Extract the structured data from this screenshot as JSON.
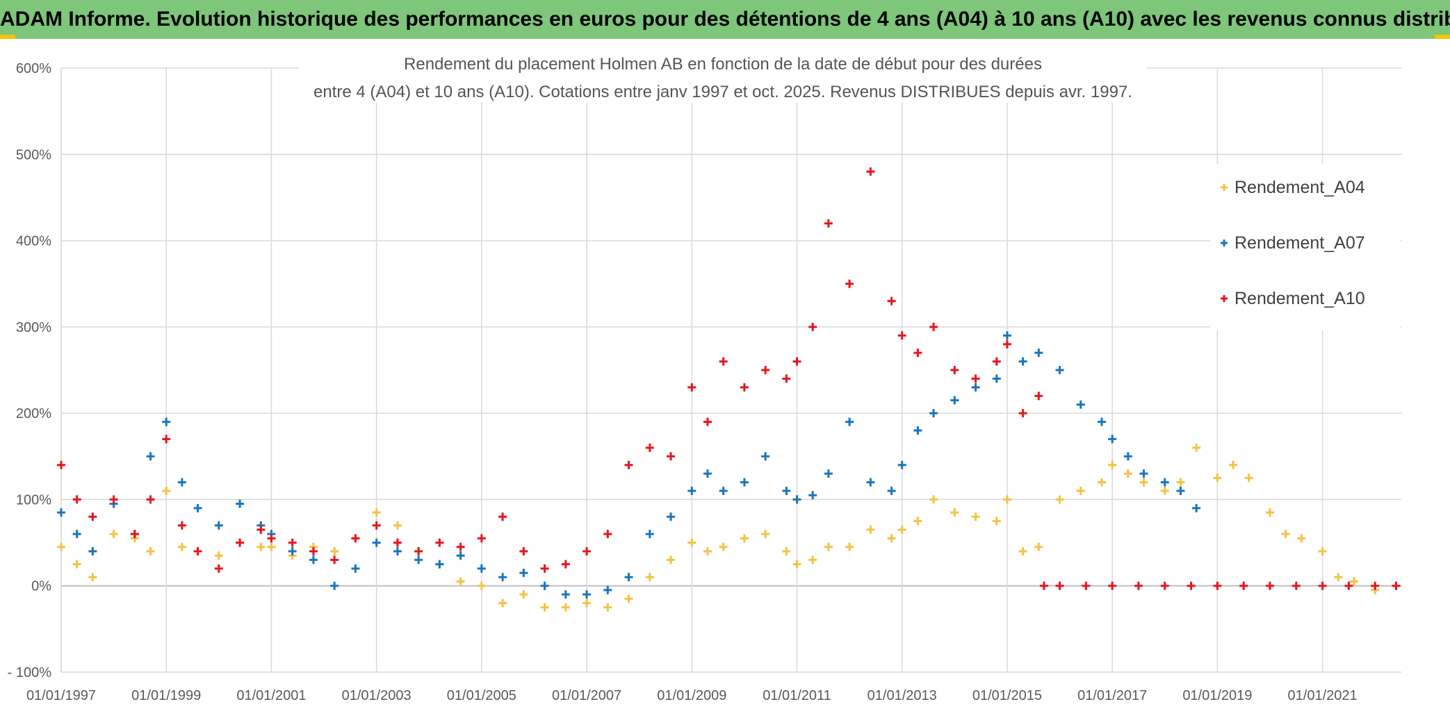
{
  "banner": {
    "text": "ADAM Informe. Evolution historique des performances en euros pour des détentions de 4 ans (A04) à 10 ans (A10) avec les revenus connus distribués"
  },
  "colors": {
    "banner_bg": "#7dc67a",
    "A04": "#f5c242",
    "A07": "#1a75bb",
    "A10": "#e8141c",
    "grid": "#d9d9d9"
  },
  "chart_data": {
    "type": "scatter",
    "title": "Rendement du placement Holmen AB en fonction de la date de début pour des durées",
    "subtitle": "entre 4 (A04) et 10 ans (A10). Cotations entre janv 1997 et oct. 2025. Revenus DISTRIBUES depuis avr. 1997.",
    "xlabel": "",
    "ylabel": "",
    "x_range": [
      1997.0,
      2022.5
    ],
    "ylim": [
      -100,
      600
    ],
    "x_tick_labels": [
      "01/01/1997",
      "01/01/1999",
      "01/01/2001",
      "01/01/2003",
      "01/01/2005",
      "01/01/2007",
      "01/01/2009",
      "01/01/2011",
      "01/01/2013",
      "01/01/2015",
      "01/01/2017",
      "01/01/2019",
      "01/01/2021"
    ],
    "x_tick_values": [
      1997,
      1999,
      2001,
      2003,
      2005,
      2007,
      2009,
      2011,
      2013,
      2015,
      2017,
      2019,
      2021
    ],
    "y_tick_labels": [
      "- 100%",
      "0%",
      "100%",
      "200%",
      "300%",
      "400%",
      "500%",
      "600%"
    ],
    "y_tick_values": [
      -100,
      0,
      100,
      200,
      300,
      400,
      500,
      600
    ],
    "legend_position": "right",
    "series": [
      {
        "name": "Rendement_A04",
        "x": [
          1997.0,
          1997.3,
          1997.6,
          1998.0,
          1998.4,
          1998.7,
          1999.0,
          1999.3,
          1999.6,
          2000.0,
          2000.4,
          2000.8,
          2001.0,
          2001.4,
          2001.8,
          2002.2,
          2002.6,
          2003.0,
          2003.4,
          2003.8,
          2004.2,
          2004.6,
          2005.0,
          2005.4,
          2005.8,
          2006.2,
          2006.6,
          2007.0,
          2007.4,
          2007.8,
          2008.2,
          2008.6,
          2009.0,
          2009.3,
          2009.6,
          2010.0,
          2010.4,
          2010.8,
          2011.0,
          2011.3,
          2011.6,
          2012.0,
          2012.4,
          2012.8,
          2013.0,
          2013.3,
          2013.6,
          2014.0,
          2014.4,
          2014.8,
          2015.0,
          2015.3,
          2015.6,
          2016.0,
          2016.4,
          2016.8,
          2017.0,
          2017.3,
          2017.6,
          2018.0,
          2018.3,
          2018.6,
          2019.0,
          2019.3,
          2019.6,
          2020.0,
          2020.3,
          2020.6,
          2021.0,
          2021.3,
          2021.6,
          2022.0,
          2022.4
        ],
        "y": [
          45,
          25,
          10,
          60,
          55,
          40,
          110,
          45,
          40,
          35,
          50,
          45,
          45,
          35,
          45,
          40,
          55,
          85,
          70,
          40,
          25,
          5,
          0,
          -20,
          -10,
          -25,
          -25,
          -20,
          -25,
          -15,
          10,
          30,
          50,
          40,
          45,
          55,
          60,
          40,
          25,
          30,
          45,
          45,
          65,
          55,
          65,
          75,
          100,
          85,
          80,
          75,
          100,
          40,
          45,
          100,
          110,
          120,
          140,
          130,
          120,
          110,
          120,
          160,
          125,
          140,
          125,
          85,
          60,
          55,
          40,
          10,
          5,
          -5,
          0
        ]
      },
      {
        "name": "Rendement_A07",
        "x": [
          1997.0,
          1997.3,
          1997.6,
          1998.0,
          1998.4,
          1998.7,
          1999.0,
          1999.3,
          1999.6,
          2000.0,
          2000.4,
          2000.8,
          2001.0,
          2001.4,
          2001.8,
          2002.2,
          2002.6,
          2003.0,
          2003.4,
          2003.8,
          2004.2,
          2004.6,
          2005.0,
          2005.4,
          2005.8,
          2006.2,
          2006.6,
          2007.0,
          2007.4,
          2007.8,
          2008.2,
          2008.6,
          2009.0,
          2009.3,
          2009.6,
          2010.0,
          2010.4,
          2010.8,
          2011.0,
          2011.3,
          2011.6,
          2012.0,
          2012.4,
          2012.8,
          2013.0,
          2013.3,
          2013.6,
          2014.0,
          2014.4,
          2014.8,
          2015.0,
          2015.3,
          2015.6,
          2016.0,
          2016.4,
          2016.8,
          2017.0,
          2017.3,
          2017.6,
          2018.0,
          2018.3,
          2018.6
        ],
        "y": [
          85,
          60,
          40,
          95,
          60,
          150,
          190,
          120,
          90,
          70,
          95,
          70,
          60,
          40,
          30,
          0,
          20,
          50,
          40,
          30,
          25,
          35,
          20,
          10,
          15,
          0,
          -10,
          -10,
          -5,
          10,
          60,
          80,
          110,
          130,
          110,
          120,
          150,
          110,
          100,
          105,
          130,
          190,
          120,
          110,
          140,
          180,
          200,
          215,
          230,
          240,
          290,
          260,
          270,
          250,
          210,
          190,
          170,
          150,
          130,
          120,
          110,
          90
        ]
      },
      {
        "name": "Rendement_A10",
        "x": [
          1997.0,
          1997.3,
          1997.6,
          1998.0,
          1998.4,
          1998.7,
          1999.0,
          1999.3,
          1999.6,
          2000.0,
          2000.4,
          2000.8,
          2001.0,
          2001.4,
          2001.8,
          2002.2,
          2002.6,
          2003.0,
          2003.4,
          2003.8,
          2004.2,
          2004.6,
          2005.0,
          2005.4,
          2005.8,
          2006.2,
          2006.6,
          2007.0,
          2007.4,
          2007.8,
          2008.2,
          2008.6,
          2009.0,
          2009.3,
          2009.6,
          2010.0,
          2010.4,
          2010.8,
          2011.0,
          2011.3,
          2011.6,
          2012.0,
          2012.4,
          2012.8,
          2013.0,
          2013.3,
          2013.6,
          2014.0,
          2014.4,
          2014.8,
          2015.0,
          2015.3,
          2015.6,
          2015.7,
          2016.0,
          2016.5,
          2017.0,
          2017.5,
          2018.0,
          2018.5,
          2019.0,
          2019.5,
          2020.0,
          2020.5,
          2021.0,
          2021.5,
          2022.0,
          2022.4
        ],
        "y": [
          140,
          100,
          80,
          100,
          60,
          100,
          170,
          70,
          40,
          20,
          50,
          65,
          55,
          50,
          40,
          30,
          55,
          70,
          50,
          40,
          50,
          45,
          55,
          80,
          40,
          20,
          25,
          40,
          60,
          140,
          160,
          150,
          230,
          190,
          260,
          230,
          250,
          240,
          260,
          300,
          420,
          350,
          480,
          330,
          290,
          270,
          300,
          250,
          240,
          260,
          280,
          200,
          220,
          0,
          0,
          0,
          0,
          0,
          0,
          0,
          0,
          0,
          0,
          0,
          0,
          0,
          0,
          0
        ]
      }
    ]
  }
}
